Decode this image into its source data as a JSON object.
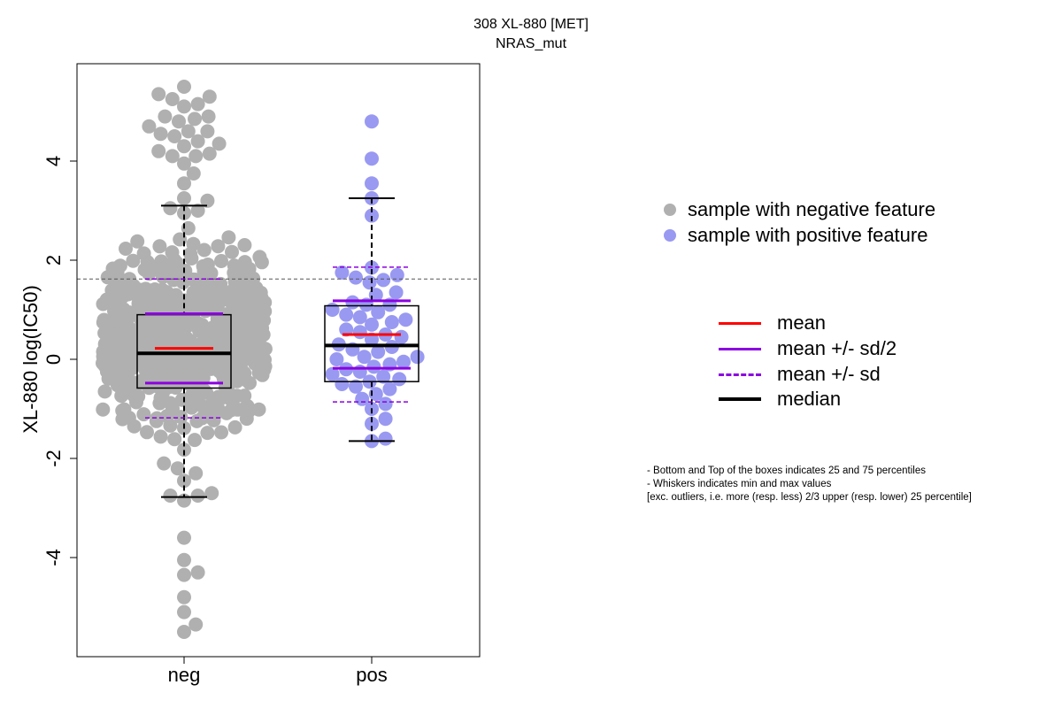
{
  "chart_data": {
    "type": "box",
    "title_line1": "308 XL-880 [MET]",
    "title_line2": "NRAS_mut",
    "ylabel": "XL-880 log(IC50)",
    "xlabel": "",
    "categories": [
      "neg",
      "pos"
    ],
    "ylim": [
      -6,
      6
    ],
    "yticks": [
      -4,
      -2,
      0,
      2,
      4
    ],
    "threshold": 1.62,
    "groups": [
      {
        "name": "neg",
        "color": "#b0b0b0",
        "n": 650,
        "spread": [
          -1.95,
          2.9
        ],
        "q1": -0.58,
        "median": 0.12,
        "q3": 0.9,
        "mean": 0.22,
        "sd": 1.4,
        "whisker_low": -2.78,
        "whisker_high": 3.1,
        "outliers_high": [
          5.5,
          5.25,
          5.15,
          5.3,
          5.1,
          5.35,
          4.9,
          4.85,
          4.8,
          4.9,
          4.7,
          4.6,
          4.5,
          4.6,
          4.55,
          4.4,
          4.35,
          4.3,
          4.2,
          4.15,
          4.1,
          4.1,
          3.95,
          3.75,
          3.55,
          3.25,
          3.2,
          3.05,
          2.95,
          3.0
        ],
        "outliers_low": [
          -2.1,
          -2.2,
          -2.3,
          -2.45,
          -2.7,
          -2.75,
          -2.75,
          -2.85,
          -3.6,
          -4.05,
          -4.3,
          -4.35,
          -4.8,
          -5.1,
          -5.35,
          -5.5
        ]
      },
      {
        "name": "pos",
        "color": "#9999f2",
        "points": [
          4.8,
          4.05,
          3.55,
          3.25,
          2.9,
          1.85,
          1.75,
          1.7,
          1.65,
          1.6,
          1.55,
          1.35,
          1.3,
          1.15,
          1.1,
          1.1,
          1.0,
          0.95,
          0.9,
          0.85,
          0.8,
          0.75,
          0.7,
          0.6,
          0.55,
          0.5,
          0.45,
          0.4,
          0.3,
          0.25,
          0.2,
          0.15,
          0.05,
          0.05,
          0.0,
          -0.05,
          -0.1,
          -0.15,
          -0.2,
          -0.25,
          -0.3,
          -0.35,
          -0.4,
          -0.45,
          -0.5,
          -0.55,
          -0.6,
          -0.7,
          -0.8,
          -0.9,
          -1.0,
          -1.2,
          -1.3,
          -1.6,
          -1.65
        ],
        "q1": -0.45,
        "median": 0.28,
        "q3": 1.08,
        "mean": 0.5,
        "sd": 1.36,
        "whisker_low": -1.65,
        "whisker_high": 3.25
      }
    ],
    "legend": {
      "points": [
        {
          "label": "sample with negative feature",
          "color": "#b0b0b0"
        },
        {
          "label": "sample with positive feature",
          "color": "#9999f2"
        }
      ],
      "lines": [
        {
          "label": "mean",
          "color": "#ff0000",
          "style": "solid"
        },
        {
          "label": "mean +/- sd/2",
          "color": "#8b00e0",
          "style": "solid"
        },
        {
          "label": "mean +/- sd",
          "color": "#8b00e0",
          "style": "dashed"
        },
        {
          "label": "median",
          "color": "#000000",
          "style": "solid-thick"
        }
      ]
    },
    "footnote": [
      "- Bottom and Top of the boxes indicates 25 and 75 percentiles",
      "- Whiskers indicates min and max values",
      "[exc. outliers, i.e. more (resp. less) 2/3 upper (resp. lower) 25 percentile]"
    ]
  }
}
